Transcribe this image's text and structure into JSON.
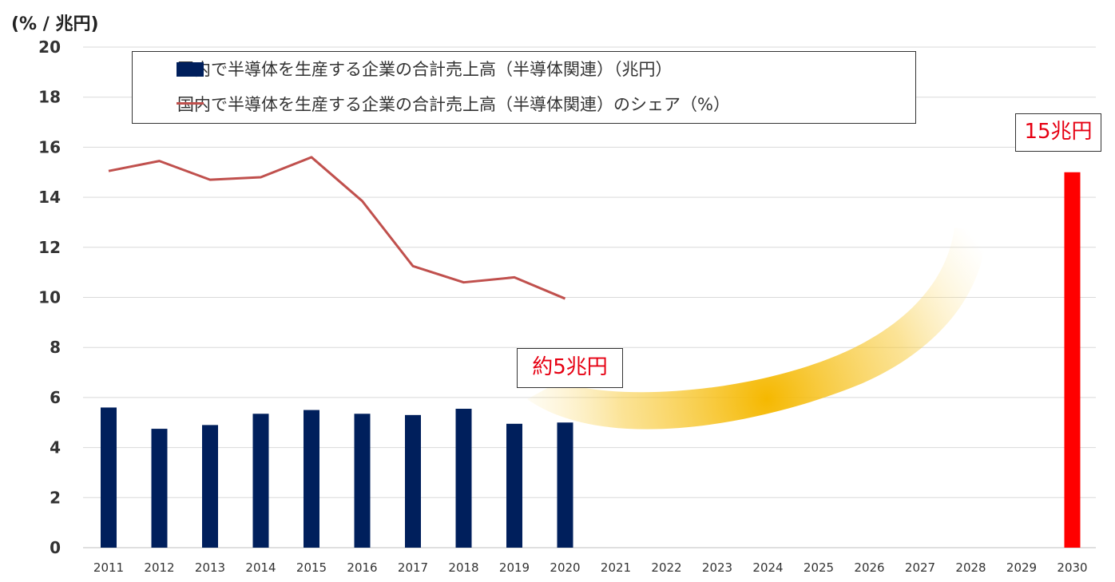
{
  "chart_data": {
    "type": "bar",
    "unit_label": "(% / 兆円)",
    "x": [
      "2011",
      "2012",
      "2013",
      "2014",
      "2015",
      "2016",
      "2017",
      "2018",
      "2019",
      "2020",
      "2021",
      "2022",
      "2023",
      "2024",
      "2025",
      "2026",
      "2027",
      "2028",
      "2029",
      "2030"
    ],
    "ylim": [
      0,
      20
    ],
    "yticks": [
      0,
      2,
      4,
      6,
      8,
      10,
      12,
      14,
      16,
      18,
      20
    ],
    "grid": true,
    "legend_position": "top",
    "series": [
      {
        "name": "国内で半導体を生産する企業の合計売上高（半導体関連）（兆円）",
        "type": "bar",
        "color": "#001f5c",
        "values": [
          5.6,
          4.75,
          4.9,
          5.35,
          5.5,
          5.35,
          5.3,
          5.55,
          4.95,
          5.0,
          null,
          null,
          null,
          null,
          null,
          null,
          null,
          null,
          null,
          15.0
        ]
      },
      {
        "name": "国内で半導体を生産する企業の合計売上高（半導体関連）のシェア（%）",
        "type": "line",
        "color": "#c0504d",
        "values": [
          15.05,
          15.45,
          14.7,
          14.8,
          15.6,
          13.85,
          11.25,
          10.6,
          10.8,
          9.95,
          null,
          null,
          null,
          null,
          null,
          null,
          null,
          null,
          null,
          null
        ]
      }
    ],
    "highlight": {
      "index": 19,
      "color": "#ff0000"
    },
    "annotations": [
      {
        "text": "約5兆円",
        "color": "#e60012"
      },
      {
        "text": "15兆円",
        "color": "#e60012"
      }
    ],
    "arrow_color": "#f5b800"
  }
}
